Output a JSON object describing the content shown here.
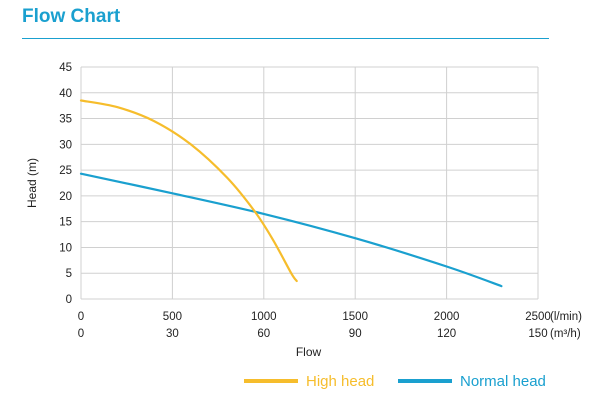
{
  "page_title": "Flow Chart",
  "colors": {
    "title": "#1aa0cf",
    "grid": "#d0d0d0",
    "high_head": "#f6bd2c",
    "normal_head": "#1aa0cf",
    "text": "#222222"
  },
  "chart_data": {
    "type": "line",
    "title": "",
    "xlabel": "Flow",
    "ylabel": "Head (m)",
    "xlim": [
      0,
      2500
    ],
    "ylim": [
      0,
      45
    ],
    "x_ticks": [
      "0",
      "500",
      "1000",
      "1500",
      "2000",
      "2500"
    ],
    "x_unit": "(l/min)",
    "x_ticks_secondary": [
      "0",
      "30",
      "60",
      "90",
      "120",
      "150"
    ],
    "x_unit_secondary": "(m³/h)",
    "y_ticks": [
      "0",
      "5",
      "10",
      "15",
      "20",
      "25",
      "30",
      "35",
      "40",
      "45"
    ],
    "grid": true,
    "legend_position": "bottom-right",
    "series": [
      {
        "name": "High head",
        "color": "#f6bd2c",
        "x": [
          0,
          200,
          400,
          600,
          800,
          950,
          1050,
          1150,
          1180
        ],
        "y": [
          38.5,
          37.2,
          34.5,
          30.0,
          23.5,
          17.0,
          11.5,
          5.0,
          3.5
        ]
      },
      {
        "name": "Normal head",
        "color": "#1aa0cf",
        "x": [
          0,
          500,
          1000,
          1500,
          2000,
          2300
        ],
        "y": [
          24.3,
          20.5,
          16.5,
          11.8,
          6.3,
          2.5
        ]
      }
    ]
  }
}
